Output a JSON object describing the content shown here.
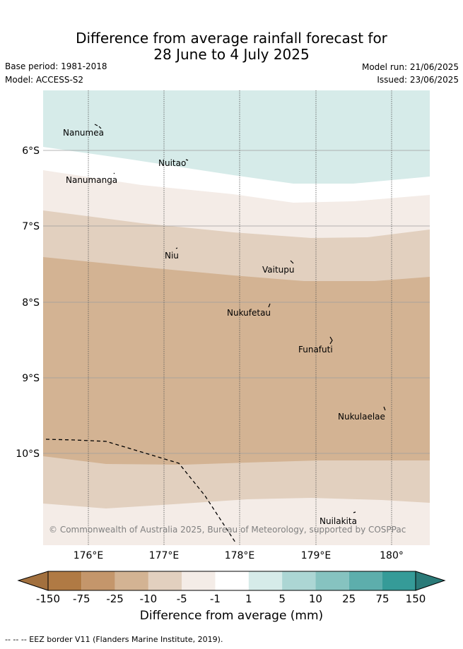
{
  "header": {
    "title_line1": "Difference from average rainfall forecast for",
    "title_line2": "28 June to 4 July 2025",
    "base_period": "Base period: 1981-2018",
    "model": "Model: ACCESS-S2",
    "model_run": "Model run: 21/06/2025",
    "issued": "Issued: 23/06/2025"
  },
  "map": {
    "lon_ticks": [
      "176°E",
      "177°E",
      "178°E",
      "179°E",
      "180°"
    ],
    "lat_ticks": [
      "6°S",
      "7°S",
      "8°S",
      "9°S",
      "10°S"
    ],
    "islands": [
      {
        "name": "Nanumea"
      },
      {
        "name": "Nuitao"
      },
      {
        "name": "Nanumanga"
      },
      {
        "name": "Niu"
      },
      {
        "name": "Vaitupu"
      },
      {
        "name": "Nukufetau"
      },
      {
        "name": "Funafuti"
      },
      {
        "name": "Nukulaelae"
      },
      {
        "name": "Nuilakita"
      }
    ],
    "copyright": "© Commonwealth of Australia 2025, Bureau of Meteorology, supported by COSPPac",
    "forecast_bands": [
      "1 to 5",
      "-1 to 1",
      "-5 to -1",
      "-10 to -5",
      "-25 to -10",
      "-10 to -5",
      "-5 to -1"
    ]
  },
  "colorbar": {
    "ticks": [
      "-150",
      "-75",
      "-25",
      "-10",
      "-5",
      "-1",
      "1",
      "5",
      "10",
      "25",
      "75",
      "150"
    ],
    "colors": [
      "#a2703e",
      "#b07a44",
      "#c4966b",
      "#d3b393",
      "#e2d0bf",
      "#f4ece7",
      "#ffffff",
      "#d6ebe9",
      "#acd6d4",
      "#86c3c0",
      "#5daeac",
      "#359b98",
      "#2a7a78"
    ],
    "label": "Difference from average (mm)"
  },
  "footnote": "-- -- -- EEZ border V11 (Flanders Marine Institute, 2019)."
}
